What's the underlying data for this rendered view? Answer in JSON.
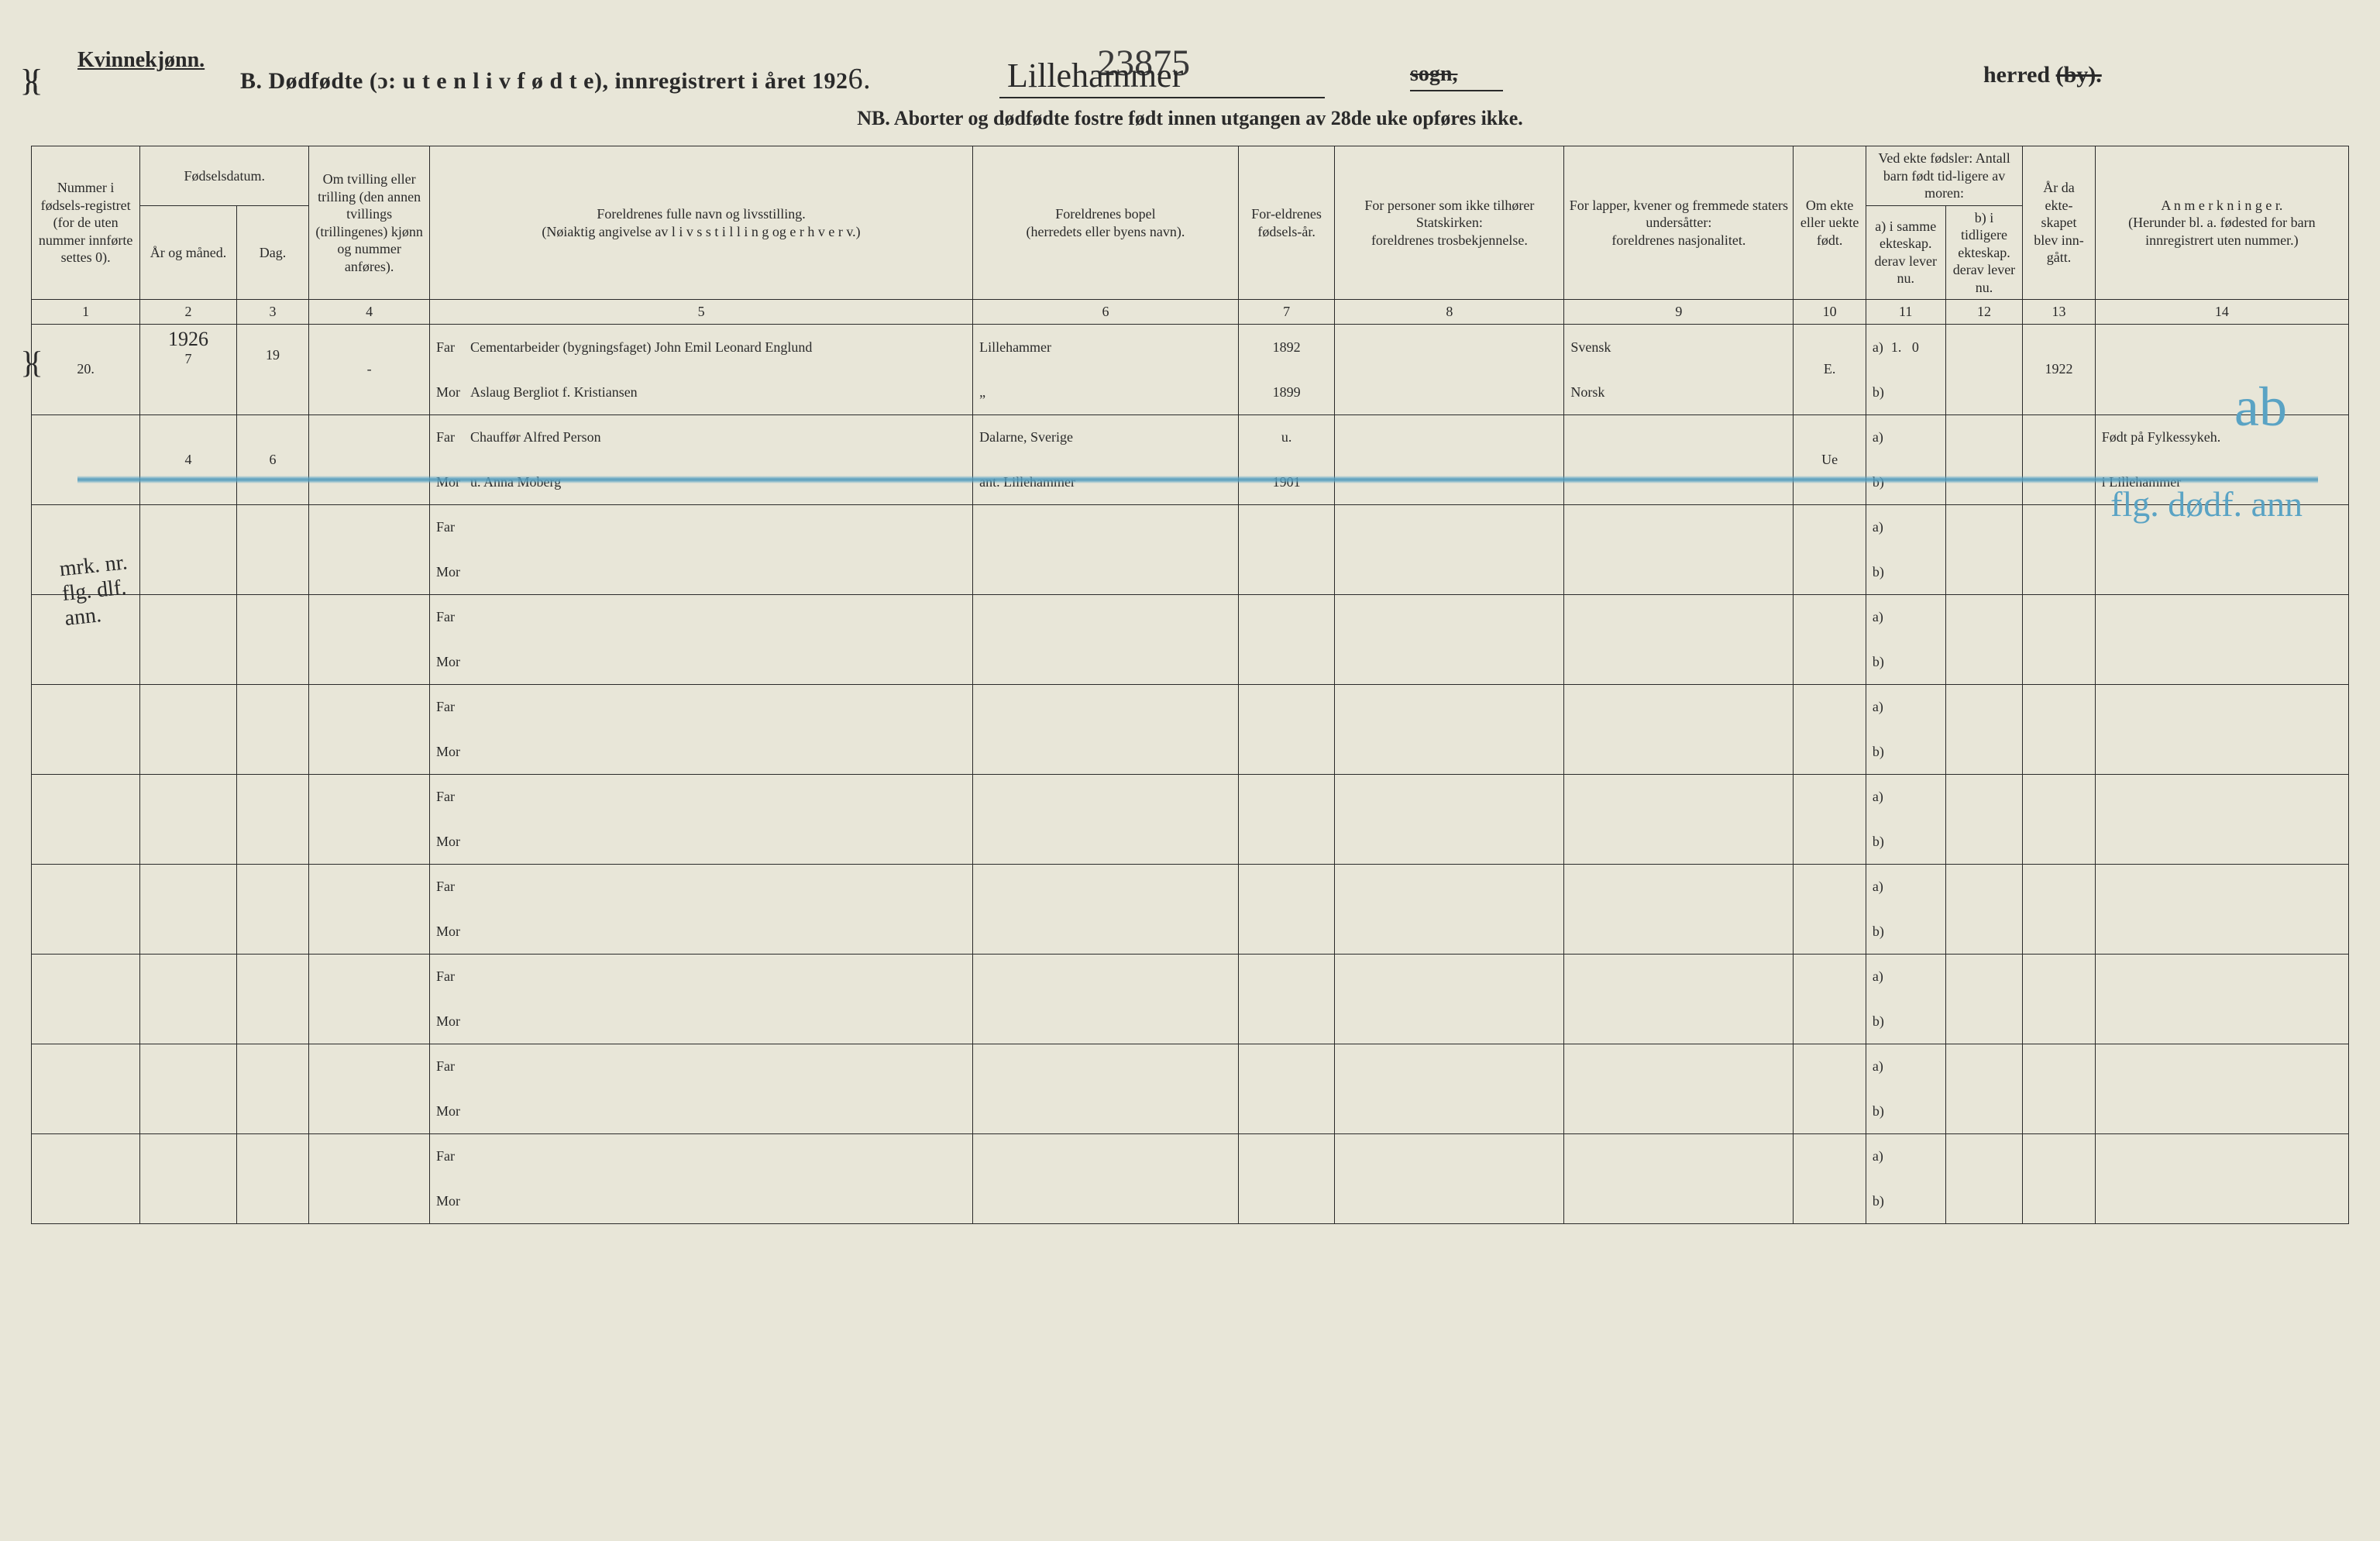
{
  "document": {
    "gender_label": "Kvinnekjønn.",
    "top_handwritten_number": "23875",
    "form_title_prefix": "B.  Dødfødte (ɔ:  u t e n  l i v  f ø d t e),  innregistrert i året 192",
    "year_suffix_hand": "6.",
    "place_hand": "Lillehammer",
    "sogn_label": "sogn,",
    "herred_label_plain": "herred ",
    "herred_label_strike": "(by).",
    "nb_text": "NB.  Aborter og dødfødte fostre født innen utgangen av 28de uke opføres ikke.",
    "background_color": "#e8e6d8",
    "ink_color": "#2a2a2a",
    "blue_crayon_color": "#5aa3c4"
  },
  "headers": {
    "c1": "Nummer i fødsels-registret (for de uten nummer innførte settes 0).",
    "c2_top": "Fødselsdatum.",
    "c2a": "År og måned.",
    "c2b": "Dag.",
    "c4": "Om tvilling eller trilling (den annen tvillings (trillingenes) kjønn og nummer anføres).",
    "c5_top": "Foreldrenes fulle navn og livsstilling.",
    "c5_sub": "(Nøiaktig angivelse av  l i v s s t i l l i n g  og  e r h v e r v.)",
    "c6_top": "Foreldrenes bopel",
    "c6_sub": "(herredets eller byens navn).",
    "c7": "For-eldrenes fødsels-år.",
    "c8_top": "For personer som ikke tilhører Statskirken:",
    "c8_sub": "foreldrenes trosbekjennelse.",
    "c9_top": "For lapper, kvener og fremmede staters undersåtter:",
    "c9_sub": "foreldrenes nasjonalitet.",
    "c10": "Om ekte eller uekte født.",
    "c11_top": "Ved ekte fødsler: Antall barn født tid-ligere av moren:",
    "c11a": "a) i samme ekteskap.",
    "c11a_sub": "derav lever nu.",
    "c11b": "b) i tidligere ekteskap.",
    "c11b_sub": "derav lever nu.",
    "c12": "År da ekte-skapet blev inn-gått.",
    "c13_top": "A n m e r k n i n g e r.",
    "c13_sub": "(Herunder bl. a. fødested for barn innregistrert uten nummer.)",
    "colnums": [
      "1",
      "2",
      "3",
      "4",
      "5",
      "6",
      "7",
      "8",
      "9",
      "10",
      "11",
      "12",
      "13",
      "14"
    ],
    "far_label": "Far",
    "mor_label": "Mor",
    "a_label": "a)",
    "b_label": "b)"
  },
  "annotations": {
    "blue_ab": "ab",
    "blue_flg": "flg. dødf. ann",
    "margin_note": "mrk. nr. flg. dlf. ann."
  },
  "rows": [
    {
      "num": "20.",
      "year_line": "1926",
      "month": "7",
      "day": "19",
      "twin": "-",
      "far_name": "Cementarbeider (bygningsfaget) John Emil Leonard Englund",
      "mor_name": "Aslaug Bergliot f. Kristiansen",
      "far_place": "Lillehammer",
      "mor_place": "„",
      "far_year": "1892",
      "mor_year": "1899",
      "far_nat": "Svensk",
      "mor_nat": "Norsk",
      "ekte": "E.",
      "a_val": "1.",
      "a_derav": "0",
      "year_married": "1922",
      "remark": ""
    },
    {
      "num": "",
      "month": "4",
      "day": "6",
      "twin": "",
      "far_name": "Chauffør Alfred Person",
      "mor_name": "u. Anna Moberg",
      "far_place": "Dalarne, Sverige",
      "mor_place": "ant. Lillehammer",
      "far_year": "u.",
      "mor_year": "1901",
      "far_nat": "",
      "mor_nat": "",
      "ekte": "Ue",
      "a_val": "",
      "a_derav": "",
      "year_married": "",
      "remark_far": "Født på Fylkessykeh.",
      "remark_mor": "i Lillehammer"
    }
  ],
  "empty_row_count": 8
}
